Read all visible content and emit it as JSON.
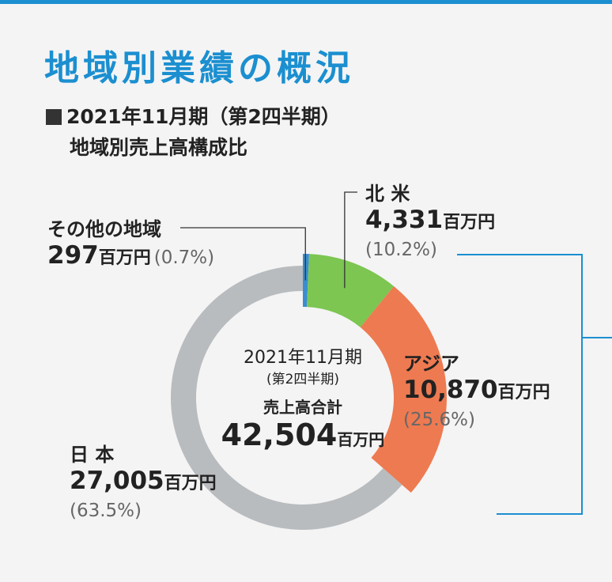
{
  "title": "地域別業績の概況",
  "subtitle_line1": "2021年11月期（第2四半期）",
  "subtitle_line2": "地域別売上高構成比",
  "center": {
    "period": "2021年11月期",
    "quarter": "(第2四半期)",
    "label": "売上高合計",
    "total": "42,504",
    "unit": "百万円"
  },
  "unit_label": "百万円",
  "colors": {
    "title": "#1b8fd0",
    "north_america": "#7cc651",
    "asia": "#ee7a51",
    "japan": "#b9bcbf",
    "other": "#3a8ed0",
    "bracket": "#1b8fd0"
  },
  "chart_data": {
    "type": "pie",
    "style": "donut",
    "unit": "百万円",
    "slices": [
      {
        "key": "other",
        "name": "その他の地域",
        "value": 297,
        "value_text": "297",
        "pct_text": "(0.7%)",
        "color": "#3a8ed0"
      },
      {
        "key": "north_america",
        "name": "北 米",
        "value": 4331,
        "value_text": "4,331",
        "pct_text": "(10.2%)",
        "color": "#7cc651"
      },
      {
        "key": "asia",
        "name": "アジア",
        "value": 10870,
        "value_text": "10,870",
        "pct_text": "(25.6%)",
        "color": "#ee7a51"
      },
      {
        "key": "japan",
        "name": "日 本",
        "value": 27005,
        "value_text": "27,005",
        "pct_text": "(63.5%)",
        "color": "#b9bcbf"
      }
    ],
    "emphasized": [
      "other",
      "north_america",
      "asia"
    ],
    "total": 42504
  }
}
